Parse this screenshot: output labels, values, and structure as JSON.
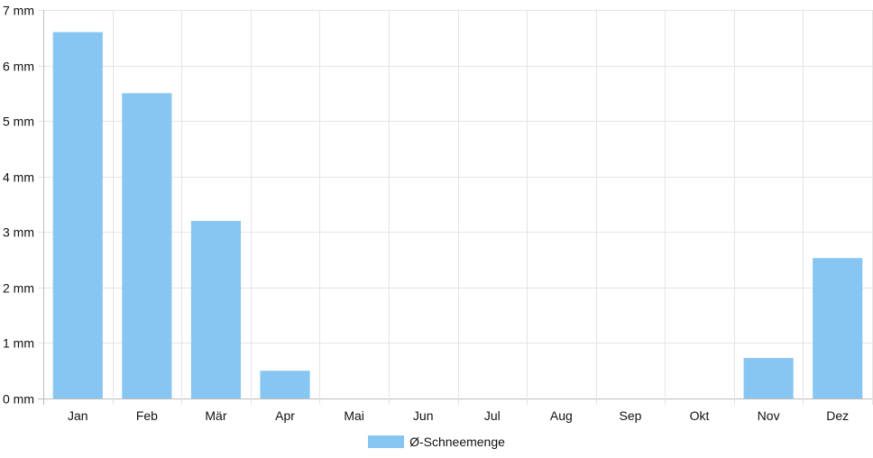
{
  "chart_data": {
    "type": "bar",
    "categories": [
      "Jan",
      "Feb",
      "Mär",
      "Apr",
      "Mai",
      "Jun",
      "Jul",
      "Aug",
      "Sep",
      "Okt",
      "Nov",
      "Dez"
    ],
    "series": [
      {
        "name": "Ø-Schneemenge",
        "values": [
          6.6,
          5.5,
          3.2,
          0.5,
          0,
          0,
          0,
          0,
          0,
          0,
          0.73,
          2.53
        ],
        "color": "#87c6f2"
      }
    ],
    "yticks": [
      "0 mm",
      "1 mm",
      "2 mm",
      "3 mm",
      "4 mm",
      "5 mm",
      "6 mm",
      "7 mm"
    ],
    "ylim": [
      0,
      7
    ],
    "grid": true,
    "legend_position": "bottom"
  }
}
